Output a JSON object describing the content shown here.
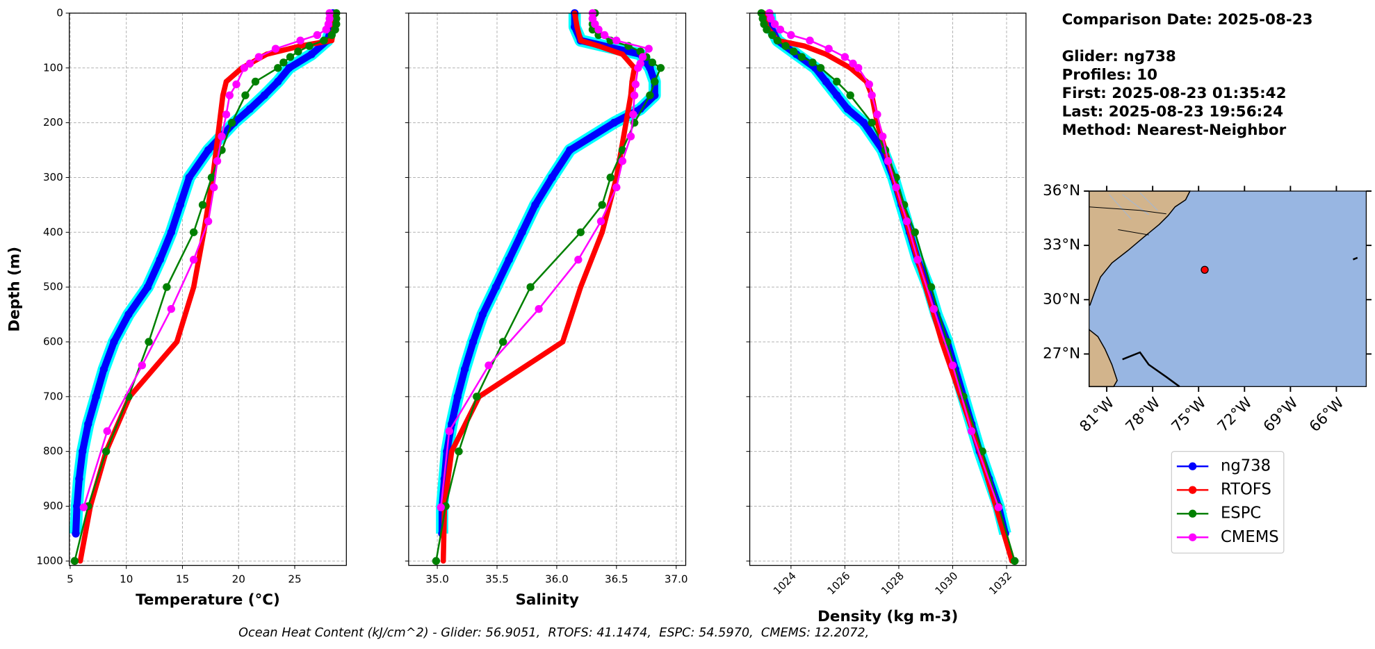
{
  "chart_data": [
    {
      "type": "line",
      "xlabel": "Temperature (°C)",
      "ylabel": "Depth (m)",
      "xlim": [
        4.92,
        29.6
      ],
      "xticks": [
        5,
        10,
        15,
        20,
        25
      ],
      "ylim": [
        0,
        1008
      ],
      "y_inverted": true,
      "yticks": [
        0,
        100,
        200,
        300,
        400,
        500,
        600,
        700,
        800,
        900,
        1000
      ],
      "grid": true,
      "series": [
        {
          "name": "ng738",
          "color": "#0000ff",
          "band_color": "#00ffff",
          "depth": [
            0,
            25,
            50,
            75,
            100,
            125,
            150,
            175,
            200,
            250,
            300,
            350,
            400,
            450,
            500,
            550,
            600,
            650,
            700,
            750,
            800,
            850,
            900,
            950
          ],
          "values": [
            28.4,
            28.3,
            27.9,
            26.5,
            24.5,
            23.5,
            22.3,
            21.0,
            19.6,
            17.3,
            15.6,
            14.8,
            14.0,
            13.0,
            11.9,
            10.2,
            8.9,
            8.0,
            7.3,
            6.6,
            6.1,
            5.8,
            5.6,
            5.5
          ]
        },
        {
          "name": "RTOFS",
          "color": "#ff0000",
          "depth": [
            0,
            25,
            50,
            60,
            75,
            100,
            125,
            150,
            200,
            300,
            400,
            500,
            600,
            700,
            800,
            900,
            1000
          ],
          "values": [
            28.5,
            28.5,
            28.3,
            25.5,
            22.5,
            20.3,
            18.9,
            18.6,
            18.3,
            17.7,
            16.9,
            16.0,
            14.5,
            10.3,
            8.2,
            6.8,
            5.9
          ]
        },
        {
          "name": "ESPC",
          "color": "#008000",
          "depth": [
            0,
            10,
            20,
            30,
            40,
            50,
            60,
            70,
            80,
            90,
            100,
            125,
            150,
            200,
            250,
            300,
            350,
            400,
            500,
            600,
            700,
            800,
            900,
            1000
          ],
          "values": [
            28.7,
            28.7,
            28.7,
            28.6,
            28.3,
            27.6,
            26.3,
            25.3,
            24.6,
            24.0,
            23.5,
            21.5,
            20.6,
            19.4,
            18.5,
            17.6,
            16.8,
            16.0,
            13.6,
            12.0,
            10.2,
            8.2,
            6.6,
            5.4
          ]
        },
        {
          "name": "CMEMS",
          "color": "#ff00ff",
          "depth": [
            0,
            10,
            20,
            30,
            40,
            50,
            65,
            80,
            92,
            100,
            130,
            150,
            185,
            225,
            270,
            318,
            380,
            450,
            540,
            643,
            763,
            902
          ],
          "values": [
            28.1,
            28.1,
            28.0,
            27.8,
            27.0,
            25.5,
            23.3,
            21.8,
            21.0,
            20.5,
            19.8,
            19.2,
            18.9,
            18.5,
            18.1,
            17.8,
            17.3,
            16.0,
            14.0,
            11.4,
            8.3,
            6.2
          ]
        }
      ]
    },
    {
      "type": "line",
      "xlabel": "Salinity",
      "sharey": true,
      "xlim": [
        34.76,
        37.08
      ],
      "xticks": [
        {
          "value": 35.0,
          "label": "35.0"
        },
        35.5,
        {
          "value": 36.0,
          "label": "36.0"
        },
        36.5,
        {
          "value": 37.0,
          "label": "37.0"
        }
      ],
      "ylim": [
        0,
        1008
      ],
      "y_inverted": true,
      "grid": true,
      "series": [
        {
          "name": "ng738",
          "color": "#0000ff",
          "band_color": "#00ffff",
          "depth": [
            0,
            25,
            50,
            75,
            100,
            125,
            150,
            175,
            200,
            250,
            300,
            350,
            400,
            450,
            500,
            550,
            600,
            650,
            700,
            750,
            800,
            850,
            900,
            950
          ],
          "values": [
            36.15,
            36.15,
            36.2,
            36.7,
            36.78,
            36.82,
            36.82,
            36.7,
            36.48,
            36.11,
            35.96,
            35.82,
            35.71,
            35.6,
            35.49,
            35.38,
            35.3,
            35.23,
            35.17,
            35.12,
            35.08,
            35.06,
            35.04,
            35.04
          ]
        },
        {
          "name": "RTOFS",
          "color": "#ff0000",
          "depth": [
            0,
            25,
            50,
            60,
            75,
            100,
            125,
            150,
            200,
            300,
            400,
            500,
            600,
            700,
            800,
            900,
            1000
          ],
          "values": [
            36.15,
            36.17,
            36.2,
            36.35,
            36.55,
            36.65,
            36.63,
            36.62,
            36.58,
            36.5,
            36.38,
            36.2,
            36.05,
            35.35,
            35.12,
            35.06,
            35.05
          ]
        },
        {
          "name": "ESPC",
          "color": "#008000",
          "depth": [
            0,
            10,
            20,
            30,
            40,
            50,
            60,
            70,
            80,
            90,
            100,
            125,
            150,
            200,
            250,
            300,
            350,
            400,
            500,
            600,
            700,
            800,
            900,
            1000
          ],
          "values": [
            36.32,
            36.3,
            36.3,
            36.3,
            36.35,
            36.45,
            36.6,
            36.7,
            36.75,
            36.8,
            36.87,
            36.82,
            36.78,
            36.65,
            36.55,
            36.45,
            36.38,
            36.2,
            35.78,
            35.55,
            35.33,
            35.18,
            35.07,
            34.99
          ]
        },
        {
          "name": "CMEMS",
          "color": "#ff00ff",
          "depth": [
            0,
            10,
            20,
            30,
            40,
            50,
            65,
            80,
            92,
            100,
            130,
            150,
            185,
            225,
            270,
            318,
            380,
            450,
            540,
            643,
            763,
            902
          ],
          "values": [
            36.3,
            36.3,
            36.32,
            36.35,
            36.4,
            36.5,
            36.77,
            36.72,
            36.7,
            36.68,
            36.66,
            36.65,
            36.64,
            36.62,
            36.55,
            36.5,
            36.37,
            36.18,
            35.85,
            35.43,
            35.1,
            35.03
          ]
        }
      ]
    },
    {
      "type": "line",
      "xlabel": "Density (kg m-3)",
      "sharey": true,
      "xtick_rotation": 45,
      "xlim": [
        1022.47,
        1032.72
      ],
      "xticks": [
        1024,
        1026,
        1028,
        1030,
        1032
      ],
      "ylim": [
        0,
        1008
      ],
      "y_inverted": true,
      "grid": true,
      "series": [
        {
          "name": "ng738",
          "color": "#0000ff",
          "band_color": "#00ffff",
          "depth": [
            0,
            25,
            50,
            75,
            100,
            125,
            150,
            175,
            200,
            250,
            300,
            350,
            400,
            450,
            500,
            550,
            600,
            650,
            700,
            750,
            800,
            850,
            900,
            950
          ],
          "values": [
            1023.2,
            1023.25,
            1023.5,
            1024.2,
            1024.9,
            1025.3,
            1025.7,
            1026.1,
            1026.7,
            1027.4,
            1027.8,
            1028.1,
            1028.4,
            1028.7,
            1029.1,
            1029.4,
            1029.8,
            1030.1,
            1030.4,
            1030.7,
            1031.0,
            1031.35,
            1031.7,
            1031.95
          ]
        },
        {
          "name": "RTOFS",
          "color": "#ff0000",
          "depth": [
            0,
            25,
            50,
            60,
            75,
            100,
            125,
            150,
            200,
            300,
            400,
            500,
            600,
            700,
            800,
            900,
            1000
          ],
          "values": [
            1023.0,
            1023.1,
            1023.5,
            1024.5,
            1025.3,
            1026.2,
            1026.8,
            1027.0,
            1027.2,
            1027.8,
            1028.4,
            1029.0,
            1029.6,
            1030.3,
            1031.0,
            1031.6,
            1032.2
          ]
        },
        {
          "name": "ESPC",
          "color": "#008000",
          "depth": [
            0,
            10,
            20,
            30,
            40,
            50,
            60,
            70,
            80,
            90,
            100,
            125,
            150,
            200,
            250,
            300,
            350,
            400,
            500,
            600,
            700,
            800,
            900,
            1000
          ],
          "values": [
            1022.9,
            1022.95,
            1023.0,
            1023.1,
            1023.3,
            1023.5,
            1023.8,
            1024.1,
            1024.4,
            1024.8,
            1025.1,
            1025.7,
            1026.2,
            1027.0,
            1027.5,
            1027.9,
            1028.2,
            1028.6,
            1029.2,
            1029.8,
            1030.4,
            1031.1,
            1031.7,
            1032.3
          ]
        },
        {
          "name": "CMEMS",
          "color": "#ff00ff",
          "depth": [
            0,
            10,
            20,
            30,
            40,
            50,
            65,
            80,
            92,
            100,
            130,
            150,
            185,
            225,
            270,
            318,
            380,
            450,
            540,
            643,
            763,
            902
          ],
          "values": [
            1023.2,
            1023.25,
            1023.4,
            1023.6,
            1024.0,
            1024.7,
            1025.4,
            1026.0,
            1026.3,
            1026.5,
            1026.9,
            1027.0,
            1027.2,
            1027.4,
            1027.6,
            1027.9,
            1028.3,
            1028.7,
            1029.3,
            1030.0,
            1030.7,
            1031.7
          ]
        }
      ]
    },
    {
      "type": "map",
      "ocean_color": "#98b6e2",
      "land_color": "#d2b48c",
      "xlim": [
        -82.15,
        -64.05
      ],
      "ylim": [
        25.2,
        36
      ],
      "xticks": [
        {
          "value": -81,
          "label": "81°W"
        },
        {
          "value": -78,
          "label": "78°W"
        },
        {
          "value": -75,
          "label": "75°W"
        },
        {
          "value": -72,
          "label": "72°W"
        },
        {
          "value": -69,
          "label": "69°W"
        },
        {
          "value": -66,
          "label": "66°W"
        }
      ],
      "yticks": [
        {
          "value": 36,
          "label": "36°N"
        },
        {
          "value": 33,
          "label": "33°N"
        },
        {
          "value": 30,
          "label": "30°N"
        },
        {
          "value": 27,
          "label": "27°N"
        }
      ],
      "marker": {
        "lon": -74.6,
        "lat": 31.65,
        "color": "#ff0000"
      }
    }
  ],
  "info": {
    "title": "Comparison Date: 2025-08-23",
    "lines": [
      "Glider: ng738",
      "Profiles: 10",
      "First: 2025-08-23 01:35:42",
      "Last: 2025-08-23 19:56:24",
      "Method: Nearest-Neighbor"
    ]
  },
  "footer": "Ocean Heat Content (kJ/cm^2) - Glider: 56.9051,  RTOFS: 41.1474,  ESPC: 54.5970,  CMEMS: 12.2072,"
}
